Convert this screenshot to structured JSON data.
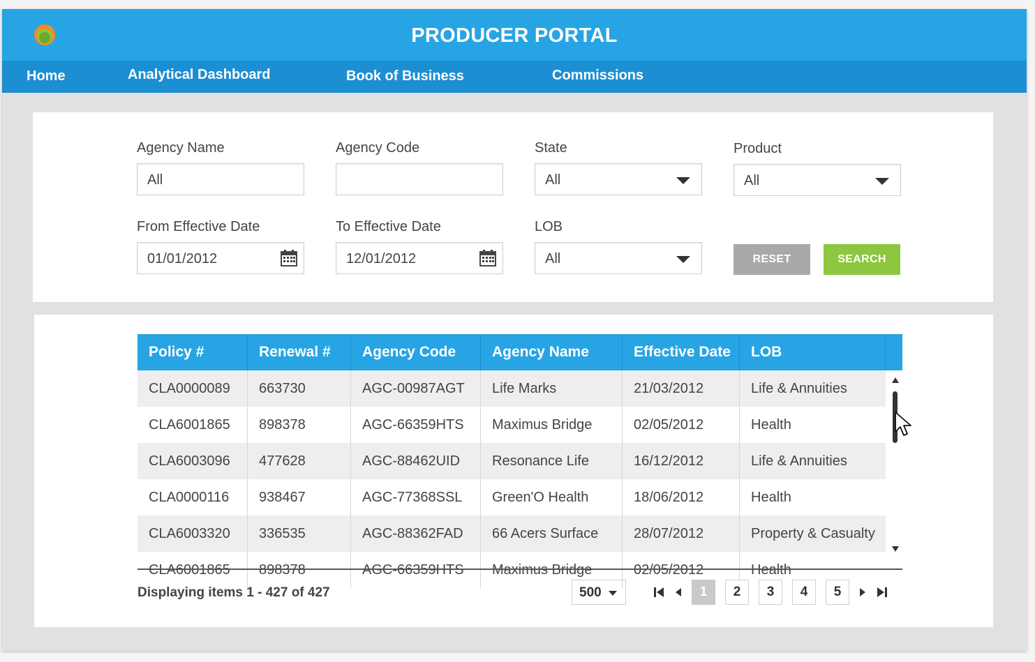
{
  "header": {
    "title": "PRODUCER PORTAL",
    "logo_icon": "portal-logo-icon"
  },
  "nav": {
    "items": [
      {
        "label": "Home"
      },
      {
        "label": "Analytical Dashboard"
      },
      {
        "label": "Book of  Business"
      },
      {
        "label": "Commissions"
      }
    ]
  },
  "filters": {
    "agency_name": {
      "label": "Agency Name",
      "value": "All"
    },
    "agency_code": {
      "label": "Agency Code",
      "value": ""
    },
    "state": {
      "label": "State",
      "value": "All"
    },
    "product": {
      "label": "Product",
      "value": "All"
    },
    "from_date": {
      "label": "From Effective Date",
      "value": "01/01/2012"
    },
    "to_date": {
      "label": "To Effective Date",
      "value": "12/01/2012"
    },
    "lob": {
      "label": "LOB",
      "value": "All"
    },
    "reset_label": "RESET",
    "search_label": "SEARCH"
  },
  "table": {
    "columns": [
      "Policy #",
      "Renewal #",
      "Agency Code",
      "Agency Name",
      "Effective Date",
      "LOB"
    ],
    "rows": [
      [
        "CLA0000089",
        "663730",
        "AGC-00987AGT",
        "Life Marks",
        "21/03/2012",
        "Life & Annuities"
      ],
      [
        "CLA6001865",
        "898378",
        "AGC-66359HTS",
        "Maximus Bridge",
        "02/05/2012",
        "Health"
      ],
      [
        "CLA6003096",
        "477628",
        "AGC-88462UID",
        "Resonance Life",
        "16/12/2012",
        "Life & Annuities"
      ],
      [
        "CLA0000116",
        "938467",
        "AGC-77368SSL",
        "Green'O Health",
        "18/06/2012",
        "Health"
      ],
      [
        "CLA6003320",
        "336535",
        "AGC-88362FAD",
        "66 Acers Surface",
        "28/07/2012",
        "Property & Casualty"
      ],
      [
        "CLA6001865",
        "898378",
        "AGC-66359HTS",
        "Maximus Bridge",
        "02/05/2012",
        "Health"
      ]
    ]
  },
  "footer": {
    "display_text": "Displaying items 1 - 427 of 427",
    "page_size": "500",
    "pages": [
      "1",
      "2",
      "3",
      "4",
      "5"
    ],
    "current_page": "1"
  },
  "colors": {
    "primary": "#27a4e4",
    "nav": "#1c8fd2",
    "search": "#8dc63f",
    "reset": "#a9a9a9"
  }
}
